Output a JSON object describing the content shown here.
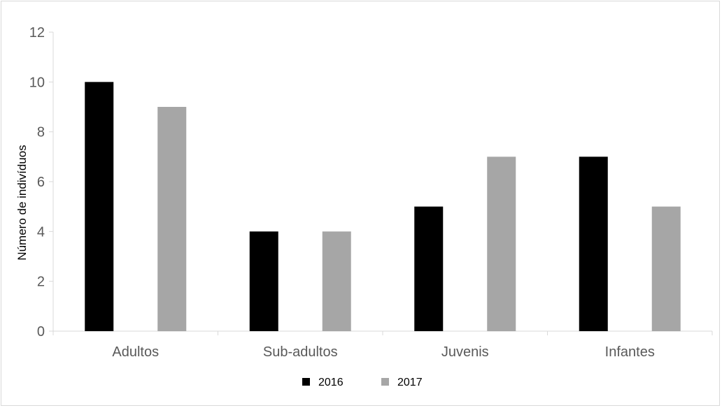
{
  "chart_data": {
    "type": "bar",
    "title": "",
    "xlabel": "",
    "ylabel": "Número de indivíduos",
    "categories": [
      "Adultos",
      "Sub-adultos",
      "Juvenis",
      "Infantes"
    ],
    "series": [
      {
        "name": "2016",
        "values": [
          10,
          4,
          5,
          7
        ],
        "color": "#000000"
      },
      {
        "name": "2017",
        "values": [
          9,
          4,
          7,
          5
        ],
        "color": "#a6a6a6"
      }
    ],
    "ylim": [
      0,
      12
    ],
    "yticks": [
      "0",
      "2",
      "4",
      "6",
      "8",
      "10",
      "12"
    ],
    "grid": false,
    "legend_position": "bottom-center"
  }
}
